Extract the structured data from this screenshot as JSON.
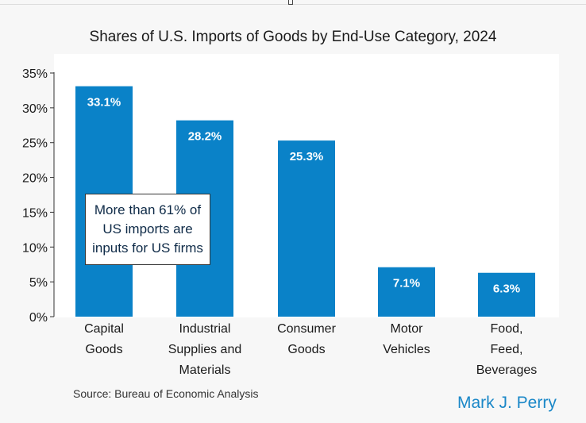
{
  "chart_data": {
    "type": "bar",
    "title": "Shares of U.S. Imports of Goods by End-Use Category, 2024",
    "categories": [
      "Capital\nGoods",
      "Industrial\nSupplies and\nMaterials",
      "Consumer\nGoods",
      "Motor\nVehicles",
      "Food,\nFeed,\nBeverages"
    ],
    "values": [
      33.1,
      28.2,
      25.3,
      7.1,
      6.3
    ],
    "data_labels": [
      "33.1%",
      "28.2%",
      "25.3%",
      "7.1%",
      "6.3%"
    ],
    "ylim": [
      0,
      35
    ],
    "yticks": [
      0,
      5,
      10,
      15,
      20,
      25,
      30,
      35
    ],
    "ytick_labels": [
      "0%",
      "5%",
      "10%",
      "15%",
      "20%",
      "25%",
      "30%",
      "35%"
    ],
    "xlabel": "",
    "ylabel": "",
    "bar_color": "#0a82c8",
    "annotation": "More than 61% of US imports are inputs for US firms"
  },
  "source": "Source: Bureau of Economic Analysis",
  "author": "Mark J. Perry"
}
